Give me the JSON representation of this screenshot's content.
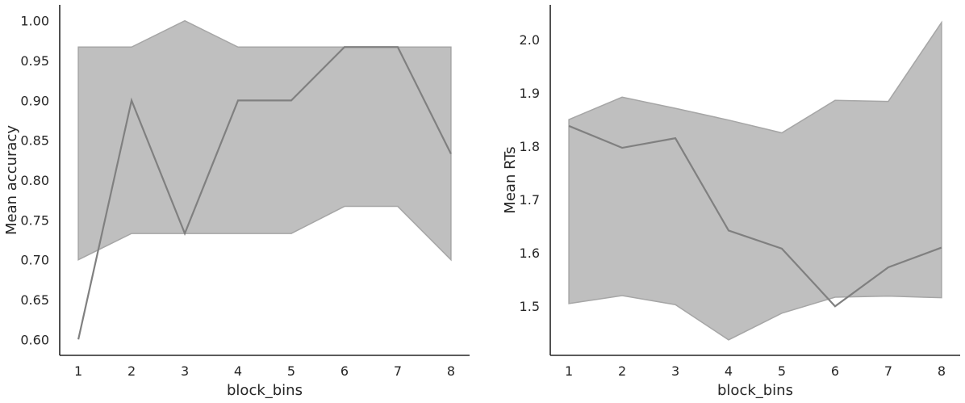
{
  "colors": {
    "line": "#808080",
    "band": "#bfbfbf",
    "band_edge": "#a6a6a6",
    "axis": "#262626"
  },
  "chart_data": [
    {
      "type": "line",
      "xlabel": "block_bins",
      "ylabel": "Mean accuracy",
      "x": [
        1,
        2,
        3,
        4,
        5,
        6,
        7,
        8
      ],
      "xticks": [
        "1",
        "2",
        "3",
        "4",
        "5",
        "6",
        "7",
        "8"
      ],
      "yticks": [
        "0.60",
        "0.65",
        "0.70",
        "0.75",
        "0.80",
        "0.85",
        "0.90",
        "0.95",
        "1.00"
      ],
      "ylim": [
        0.58,
        1.02
      ],
      "xlim": [
        0.65,
        8.35
      ],
      "grid": false,
      "series": [
        {
          "values": [
            0.6,
            0.9,
            0.733,
            0.9,
            0.9,
            0.967,
            0.967,
            0.833
          ],
          "ci_lower": [
            0.7,
            0.733,
            0.733,
            0.733,
            0.733,
            0.767,
            0.767,
            0.7
          ],
          "ci_upper": [
            0.967,
            0.967,
            1.0,
            0.967,
            0.967,
            0.967,
            0.967,
            0.967
          ]
        }
      ]
    },
    {
      "type": "line",
      "xlabel": "block_bins",
      "ylabel": "Mean RTs",
      "x": [
        1,
        2,
        3,
        4,
        5,
        6,
        7,
        8
      ],
      "xticks": [
        "1",
        "2",
        "3",
        "4",
        "5",
        "6",
        "7",
        "8"
      ],
      "yticks": [
        "1.5",
        "1.6",
        "1.7",
        "1.8",
        "1.9",
        "2.0"
      ],
      "ylim": [
        1.408,
        2.065
      ],
      "xlim": [
        0.65,
        8.35
      ],
      "grid": false,
      "series": [
        {
          "values": [
            1.838,
            1.797,
            1.815,
            1.642,
            1.608,
            1.5,
            1.573,
            1.61
          ],
          "ci_lower": [
            1.505,
            1.52,
            1.503,
            1.437,
            1.487,
            1.517,
            1.519,
            1.516
          ],
          "ci_upper": [
            1.85,
            1.892,
            1.871,
            1.849,
            1.825,
            1.886,
            1.884,
            2.032
          ]
        }
      ]
    }
  ]
}
